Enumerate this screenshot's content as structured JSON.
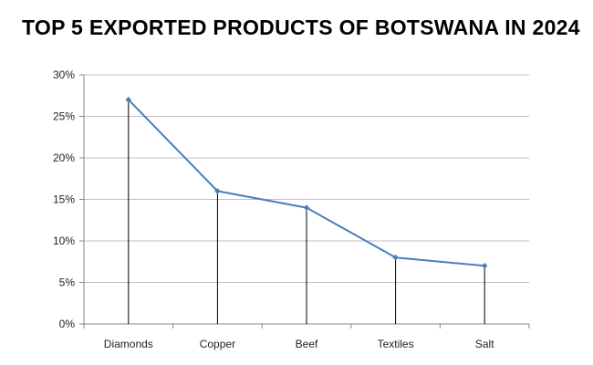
{
  "chart_data": {
    "type": "line",
    "title": "TOP 5 EXPORTED PRODUCTS OF BOTSWANA IN 2024",
    "categories": [
      "Diamonds",
      "Copper",
      "Beef",
      "Textiles",
      "Salt"
    ],
    "series": [
      {
        "values": [
          27,
          16,
          14,
          8,
          7
        ]
      }
    ],
    "xlabel": "",
    "ylabel": "",
    "ylim": [
      0,
      30
    ],
    "yticks": [
      0,
      5,
      10,
      15,
      20,
      25,
      30
    ],
    "ytick_labels": [
      "0%",
      "5%",
      "10%",
      "15%",
      "20%",
      "25%",
      "30%"
    ],
    "drop_lines": true,
    "grid": true,
    "legend": "none",
    "colors": {
      "line": "#4a7ebb",
      "grid": "#bfbfbf",
      "axis": "#868686",
      "drop_line": "#000000"
    }
  }
}
